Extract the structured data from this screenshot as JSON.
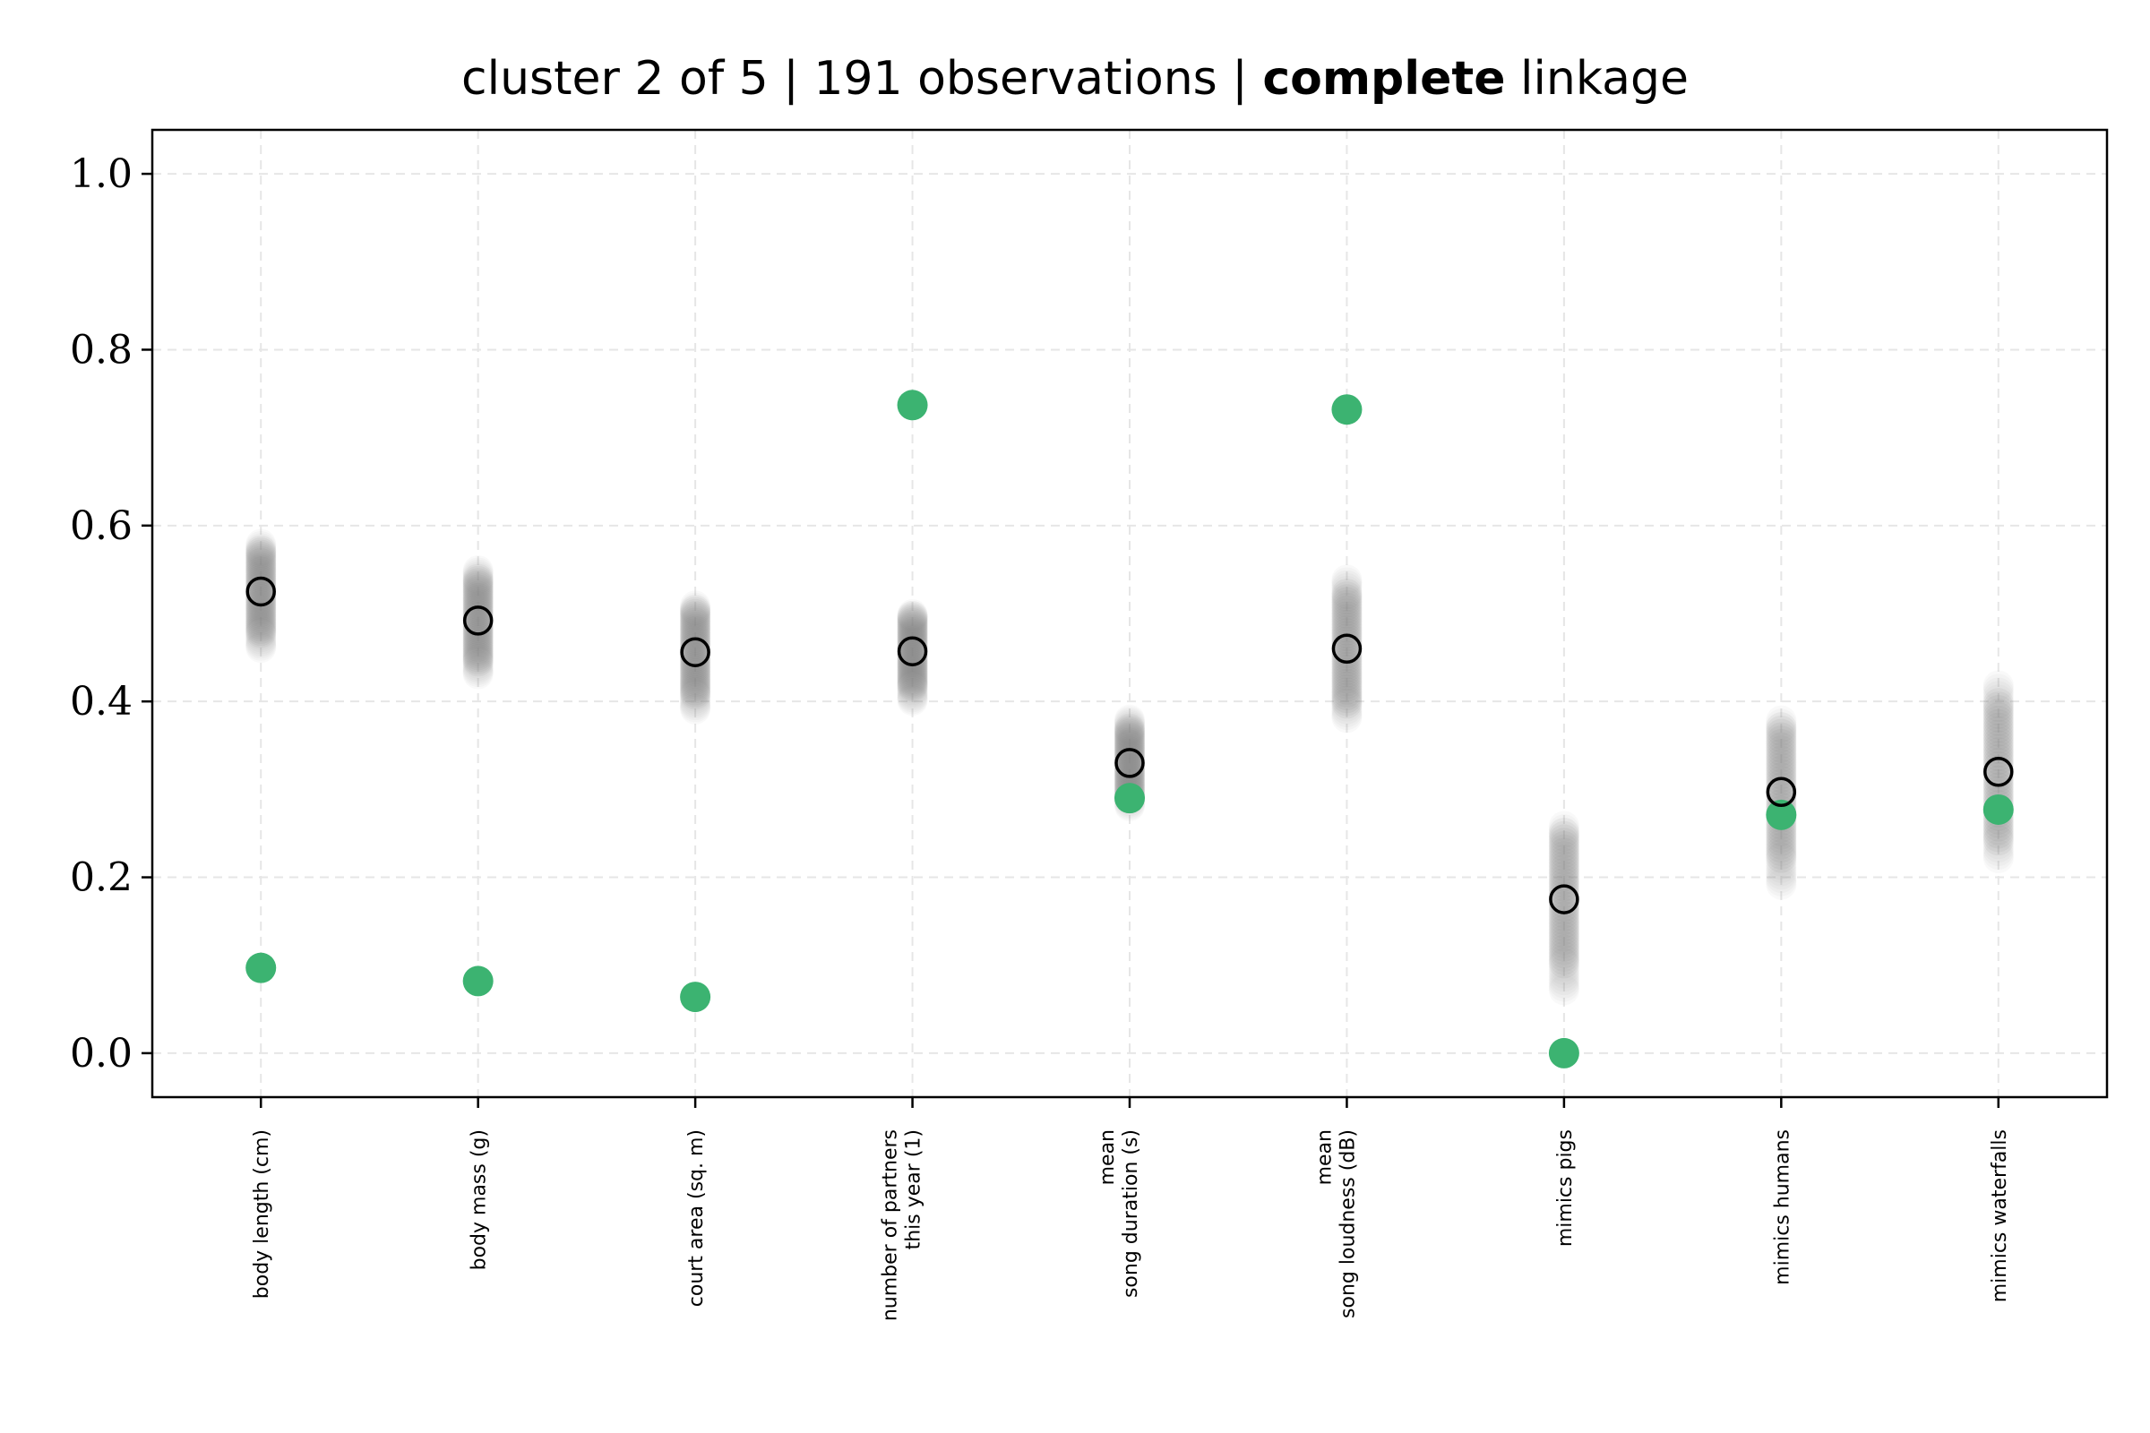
{
  "chart_data": {
    "type": "scatter",
    "title": {
      "prefix": "cluster 2 of 5 | 191 observations | ",
      "bold": "complete",
      "suffix": " linkage"
    },
    "xlabel": "",
    "ylabel": "",
    "ylim": [
      -0.05,
      1.05
    ],
    "yticks": [
      "0.0",
      "0.2",
      "0.4",
      "0.6",
      "0.8",
      "1.0"
    ],
    "grid": true,
    "categories": [
      [
        "body length (cm)"
      ],
      [
        "body mass (g)"
      ],
      [
        "court area (sq. m)"
      ],
      [
        "number of partners",
        "this year (1)"
      ],
      [
        "mean",
        "song duration (s)"
      ],
      [
        "mean",
        "song loudness (dB)"
      ],
      [
        "mimics pigs"
      ],
      [
        "mimics humans"
      ],
      [
        "mimics waterfalls"
      ]
    ],
    "observation_ranges": [
      [
        0.46,
        0.58
      ],
      [
        0.43,
        0.55
      ],
      [
        0.39,
        0.51
      ],
      [
        0.4,
        0.5
      ],
      [
        0.28,
        0.38
      ],
      [
        0.38,
        0.54
      ],
      [
        0.07,
        0.26
      ],
      [
        0.19,
        0.38
      ],
      [
        0.22,
        0.42
      ]
    ],
    "cluster_mean": [
      0.525,
      0.492,
      0.456,
      0.457,
      0.33,
      0.46,
      0.175,
      0.297,
      0.32
    ],
    "highlighted_observation": [
      0.097,
      0.082,
      0.064,
      0.737,
      0.29,
      0.732,
      0.0,
      0.271,
      0.277
    ],
    "colors": {
      "observations": "#808080",
      "mean_marker": "#000000",
      "highlight": "#3cb371",
      "grid": "#e6e6e6"
    }
  }
}
